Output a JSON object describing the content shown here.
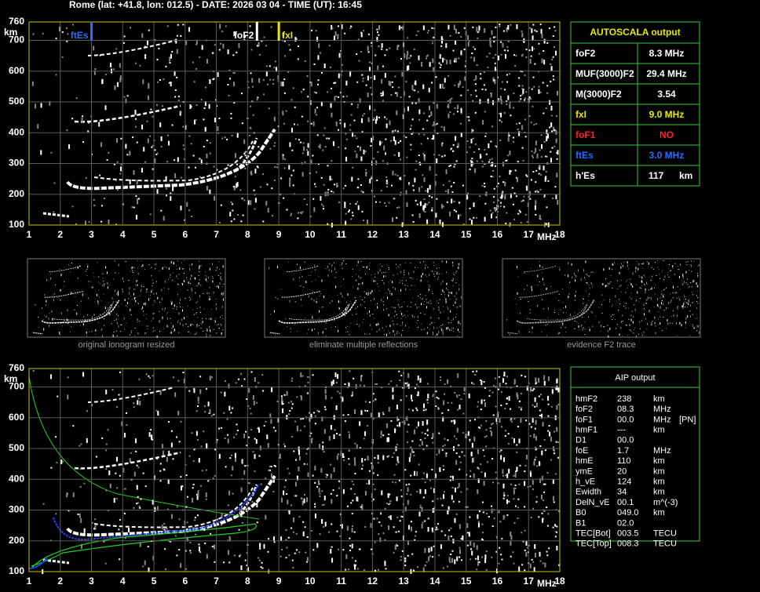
{
  "header": "Rome (lat: +41.8, lon: 012.5) - DATE: 2026 03 04 - TIME (UT): 16:45",
  "ionograms": [
    {
      "xlim": [
        1,
        18
      ],
      "xticks": [
        1,
        2,
        3,
        4,
        5,
        6,
        7,
        8,
        9,
        10,
        11,
        12,
        13,
        14,
        15,
        16,
        17,
        18
      ],
      "xlabel": "MHz",
      "ylim": [
        100,
        760
      ],
      "yticks": [
        100,
        200,
        300,
        400,
        500,
        600,
        700,
        760
      ],
      "ylabel": "km",
      "markers": [
        {
          "label": "ftEs",
          "value": 3.0,
          "color": "#2a6cff"
        },
        {
          "label": "foF2",
          "value": 8.3,
          "color": "#ffffff"
        },
        {
          "label": "fxI",
          "value": 9.0,
          "color": "#e8e800"
        }
      ]
    },
    {
      "xlim": [
        1,
        18
      ],
      "xticks": [
        1,
        2,
        3,
        4,
        5,
        6,
        7,
        8,
        9,
        10,
        11,
        12,
        13,
        14,
        15,
        16,
        17,
        18
      ],
      "xlabel": "MHz",
      "ylim": [
        100,
        760
      ],
      "yticks": [
        100,
        200,
        300,
        400,
        500,
        600,
        700,
        760
      ],
      "ylabel": "km"
    }
  ],
  "thumbnails": [
    "original ionogram resized",
    "eliminate multiple reflections",
    "evidence F2 trace"
  ],
  "autoscala": {
    "title": "AUTOSCALA output",
    "rows": [
      {
        "label": "foF2",
        "value": "8.3 MHz",
        "color": "#ffffff"
      },
      {
        "label": "MUF(3000)F2",
        "value": "29.4 MHz",
        "color": "#ffffff"
      },
      {
        "label": "M(3000)F2",
        "value": "3.54",
        "color": "#ffffff"
      },
      {
        "label": "fxI",
        "value": "9.0 MHz",
        "color": "#e8e800"
      },
      {
        "label": "foF1",
        "value": "NO",
        "color": "#ff2020"
      },
      {
        "label": "ftEs",
        "value": "3.0 MHz",
        "color": "#2a6cff"
      },
      {
        "label": "h'Es",
        "value": "117",
        "unit": "km",
        "color": "#ffffff"
      }
    ]
  },
  "aip": {
    "title": "AIP output",
    "rows": [
      [
        "hmF2",
        "238",
        "km"
      ],
      [
        "foF2",
        "08.3",
        "MHz"
      ],
      [
        "foF1",
        "00.0",
        "MHz",
        "[PN]"
      ],
      [
        "hmF1",
        "---",
        "km"
      ],
      [
        "D1",
        "00.0"
      ],
      [
        "foE",
        "1.7",
        "MHz"
      ],
      [
        "hmE",
        "110",
        "km"
      ],
      [
        "ymE",
        "20",
        "km"
      ],
      [
        "h_vE",
        "124",
        "km"
      ],
      [
        "Ewidth",
        "34",
        "km"
      ],
      [
        "DelN_vE",
        "00.1",
        "m^(-3)"
      ],
      [
        "B0",
        "049.0",
        "km"
      ],
      [
        "B1",
        "02.0"
      ],
      [
        "TEC[Bot]",
        "003.5",
        "TECU"
      ],
      [
        "TEC[Top]",
        "008.3",
        "TECU"
      ]
    ]
  }
}
